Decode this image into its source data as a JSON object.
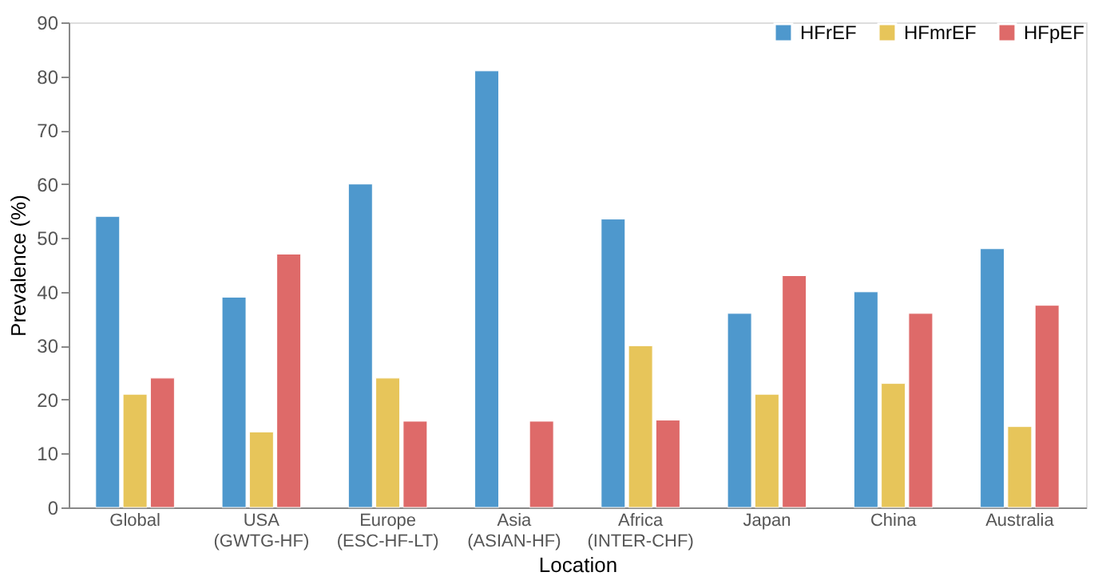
{
  "chart_data": {
    "type": "bar",
    "xlabel": "Location",
    "ylabel": "Prevalence (%)",
    "categories": [
      "Global",
      "USA\n(GWTG-HF)",
      "Europe\n(ESC-HF-LT)",
      "Asia\n(ASIAN-HF)",
      "Africa\n(INTER-CHF)",
      "Japan",
      "China",
      "Australia"
    ],
    "series": [
      {
        "name": "HFrEF",
        "color": "#4e98cd",
        "values": [
          54,
          39,
          60,
          81,
          53.5,
          36,
          40,
          48
        ]
      },
      {
        "name": "HFmrEF",
        "color": "#e7c55a",
        "values": [
          21,
          14,
          24,
          null,
          30,
          21,
          23,
          15
        ]
      },
      {
        "name": "HFpEF",
        "color": "#de6a69",
        "values": [
          24,
          47,
          16,
          16,
          16.2,
          43,
          36,
          37.5
        ]
      }
    ],
    "ylim": [
      0,
      90
    ],
    "yticks": [
      0,
      10,
      20,
      30,
      40,
      50,
      60,
      70,
      80,
      90
    ],
    "grid": false,
    "legend": "top right"
  }
}
